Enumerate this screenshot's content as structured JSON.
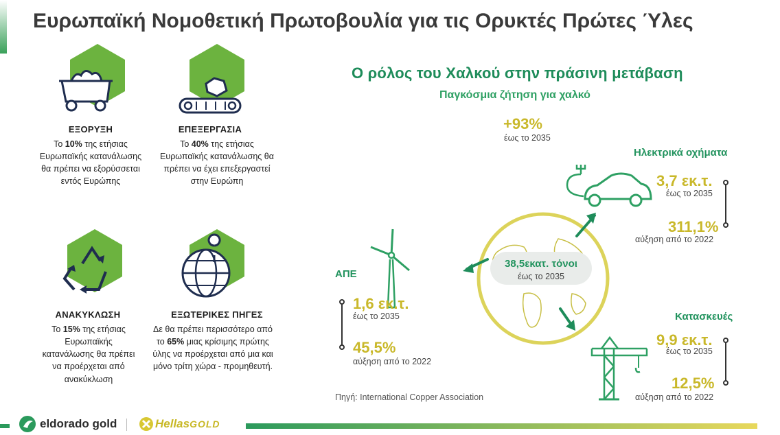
{
  "title": "Ευρωπαϊκή Νομοθετική Πρωτοβουλία για τις Ορυκτές Πρώτες Ύλες",
  "colors": {
    "green_primary": "#6cb33f",
    "green_dark": "#1e8c5a",
    "gold": "#c9b82a",
    "navy_icon": "#1f2d4f"
  },
  "pillars": [
    {
      "icon": "mining-cart-icon",
      "name": "ΕΞΟΡΥΞΗ",
      "text_pre": "Το ",
      "text_bold": "10%",
      "text_post": " της ετήσιας Ευρωπαϊκής κατανάλωσης θα πρέπει να εξορύσσεται εντός Ευρώπης"
    },
    {
      "icon": "conveyor-processing-icon",
      "name": "ΕΠΕΞΕΡΓΑΣΙΑ",
      "text_pre": "Το ",
      "text_bold": "40%",
      "text_post": " της ετήσιας Ευρωπαϊκής κατανάλωσης θα πρέπει να έχει επεξεργαστεί στην Ευρώπη"
    },
    {
      "icon": "recycle-icon",
      "name": "ΑΝΑΚΥΚΛΩΣΗ",
      "text_pre": "Το ",
      "text_bold": "15%",
      "text_post": " της ετήσιας Ευρωπαϊκής κατανάλωσης θα πρέπει να προέρχεται από ανακύκλωση"
    },
    {
      "icon": "globe-pin-icon",
      "name": "ΕΞΩΤΕΡΙΚΕΣ ΠΗΓΕΣ",
      "text_pre": "Δε θα πρέπει περισσότερο από το ",
      "text_bold": "65%",
      "text_post": " μιας κρίσιμης πρώτης ύλης να προέρχεται από μια και μόνο τρίτη χώρα - προμηθευτή."
    }
  ],
  "right": {
    "title": "Ο ρόλος του Χαλκού στην πράσινη μετάβαση",
    "subtitle": "Παγκόσμια ζήτηση για χαλκό",
    "global_growth": {
      "value": "+93%",
      "caption": "έως το 2035"
    },
    "globe": {
      "value": "38,5εκατ. τόνοι",
      "caption": "έως το 2035"
    },
    "ev": {
      "label": "Ηλεκτρικά οχήματα",
      "v1": "3,7 εκ.τ.",
      "c1": "έως το 2035",
      "v2": "311,1%",
      "c2": "αύξηση από το 2022"
    },
    "renewables": {
      "label": "ΑΠΕ",
      "v1": "1,6 εκ.τ.",
      "c1": "έως το 2035",
      "v2": "45,5%",
      "c2": "αύξηση από το 2022"
    },
    "construction": {
      "label": "Κατασκευές",
      "v1": "9,9 εκ.τ.",
      "c1": "έως το 2035",
      "v2": "12,5%",
      "c2": "αύξηση από το 2022"
    },
    "source": "Πηγή: International Copper Association"
  },
  "footer": {
    "logo1": "eldorado gold",
    "logo2_part1": "Hellas",
    "logo2_part2": "GOLD"
  }
}
